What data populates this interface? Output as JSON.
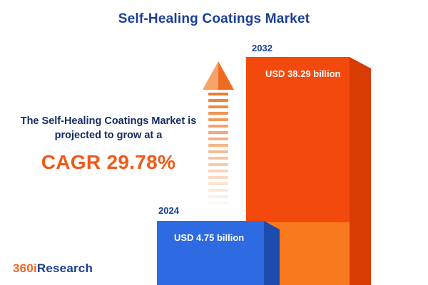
{
  "page": {
    "title": "Self-Healing Coatings Market"
  },
  "annotation": {
    "line1": "The Self-Healing Coatings Market is",
    "line2": "projected to grow at a",
    "cagr": "CAGR 29.78%"
  },
  "logo": {
    "prefix": "360i",
    "suffix": "Research"
  },
  "chart_data": {
    "type": "bar",
    "title": "Self-Healing Coatings Market",
    "unit": "USD billion",
    "categories": [
      "2024",
      "2032"
    ],
    "values": [
      4.75,
      38.29
    ],
    "series": [
      {
        "year": "2024",
        "value": 4.75,
        "label": "USD 4.75 billion",
        "color": "#2e6ae2"
      },
      {
        "year": "2032",
        "value": 38.29,
        "label": "USD 38.29 billion",
        "color": "#f4490c"
      }
    ],
    "growth": {
      "cagr_percent": 29.78,
      "label": "CAGR 29.78%"
    },
    "legend": false,
    "xlabel": "",
    "ylabel": ""
  },
  "colors": {
    "navy": "#1a3e97",
    "text_navy": "#142b5f",
    "accent_orange": "#f05a19",
    "bar_blue": "#2e6ae2",
    "bar_blue_side": "#1e4cae",
    "bar_orange": "#f4490c",
    "bar_orange_light": "#f97a1e",
    "bar_orange_side": "#d83c03",
    "arrow_light": "#f8a269",
    "arrow_dark": "#ee6c22",
    "dash": "#ee7d2e"
  }
}
